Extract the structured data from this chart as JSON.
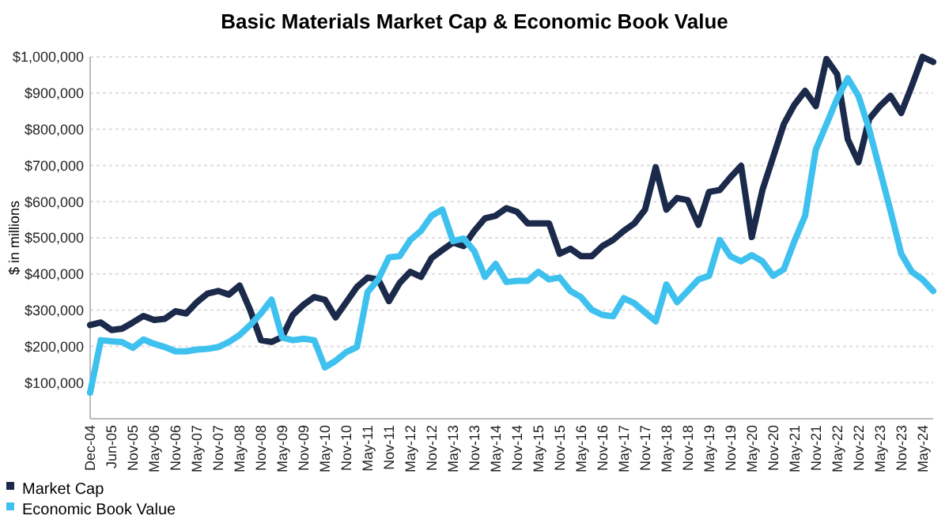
{
  "chart_data": {
    "type": "line",
    "title": "Basic Materials Market Cap & Economic Book Value",
    "ylabel": "$ in millions",
    "categories": [
      "Dec-04",
      null,
      "Jun-05",
      null,
      "Nov-05",
      null,
      "May-06",
      null,
      "Nov-06",
      null,
      "May-07",
      null,
      "Nov-07",
      null,
      "May-08",
      null,
      "Nov-08",
      null,
      "May-09",
      null,
      "Nov-09",
      null,
      "May-10",
      null,
      "Nov-10",
      null,
      "May-11",
      null,
      "Nov-11",
      null,
      "May-12",
      null,
      "Nov-12",
      null,
      "May-13",
      null,
      "Nov-13",
      null,
      "May-14",
      null,
      "Nov-14",
      null,
      "May-15",
      null,
      "Nov-15",
      null,
      "May-16",
      null,
      "Nov-16",
      null,
      "May-17",
      null,
      "Nov-17",
      null,
      "May-18",
      null,
      "Nov-18",
      null,
      "May-19",
      null,
      "Nov-19",
      null,
      "May-20",
      null,
      "Nov-20",
      null,
      "May-21",
      null,
      "Nov-21",
      null,
      "May-22",
      null,
      "Nov-22",
      null,
      "May-23",
      null,
      "Nov-23",
      null,
      "May-24",
      null
    ],
    "series": [
      {
        "name": "Market Cap",
        "color": "#1b2a4a",
        "values": [
          259000,
          266000,
          245000,
          249000,
          266000,
          284000,
          273000,
          276000,
          297000,
          291000,
          322000,
          346000,
          353000,
          343000,
          368000,
          300000,
          217000,
          212000,
          226000,
          287000,
          315000,
          336000,
          329000,
          280000,
          322000,
          364000,
          390000,
          385000,
          325000,
          375000,
          406000,
          392000,
          444000,
          466000,
          487000,
          477000,
          519000,
          554000,
          561000,
          582000,
          572000,
          540000,
          540000,
          540000,
          456000,
          470000,
          449000,
          449000,
          477000,
          494000,
          519000,
          540000,
          578000,
          695000,
          578000,
          610000,
          604000,
          536000,
          627000,
          632000,
          667000,
          699000,
          502000,
          632000,
          723000,
          814000,
          868000,
          906000,
          864000,
          994000,
          952000,
          772000,
          709000,
          828000,
          864000,
          892000,
          845000,
          920000,
          1000000,
          986000
        ]
      },
      {
        "name": "Economic Book Value",
        "color": "#3ec1ee",
        "values": [
          72000,
          217000,
          214000,
          212000,
          196000,
          219000,
          207000,
          198000,
          186000,
          186000,
          191000,
          193000,
          198000,
          212000,
          231000,
          259000,
          291000,
          329000,
          224000,
          217000,
          221000,
          217000,
          142000,
          160000,
          184000,
          198000,
          350000,
          385000,
          446000,
          449000,
          494000,
          519000,
          561000,
          578000,
          491000,
          498000,
          463000,
          392000,
          428000,
          378000,
          381000,
          381000,
          406000,
          385000,
          390000,
          353000,
          336000,
          301000,
          287000,
          283000,
          333000,
          319000,
          294000,
          269000,
          371000,
          322000,
          353000,
          385000,
          395000,
          494000,
          449000,
          435000,
          452000,
          435000,
          395000,
          413000,
          491000,
          561000,
          744000,
          814000,
          885000,
          941000,
          892000,
          800000,
          688000,
          575000,
          456000,
          406000,
          385000,
          353000
        ]
      }
    ],
    "ylim": [
      0,
      1000000
    ],
    "yticks": [
      {
        "value": 100000,
        "label": "$100,000"
      },
      {
        "value": 200000,
        "label": "$200,000"
      },
      {
        "value": 300000,
        "label": "$300,000"
      },
      {
        "value": 400000,
        "label": "$400,000"
      },
      {
        "value": 500000,
        "label": "$500,000"
      },
      {
        "value": 600000,
        "label": "$600,000"
      },
      {
        "value": 700000,
        "label": "$700,000"
      },
      {
        "value": 800000,
        "label": "$800,000"
      },
      {
        "value": 900000,
        "label": "$900,000"
      },
      {
        "value": 1000000,
        "label": "$1,000,000"
      }
    ],
    "grid": "y",
    "legend": "bottom left",
    "marker": "none",
    "line_style": "solid"
  }
}
